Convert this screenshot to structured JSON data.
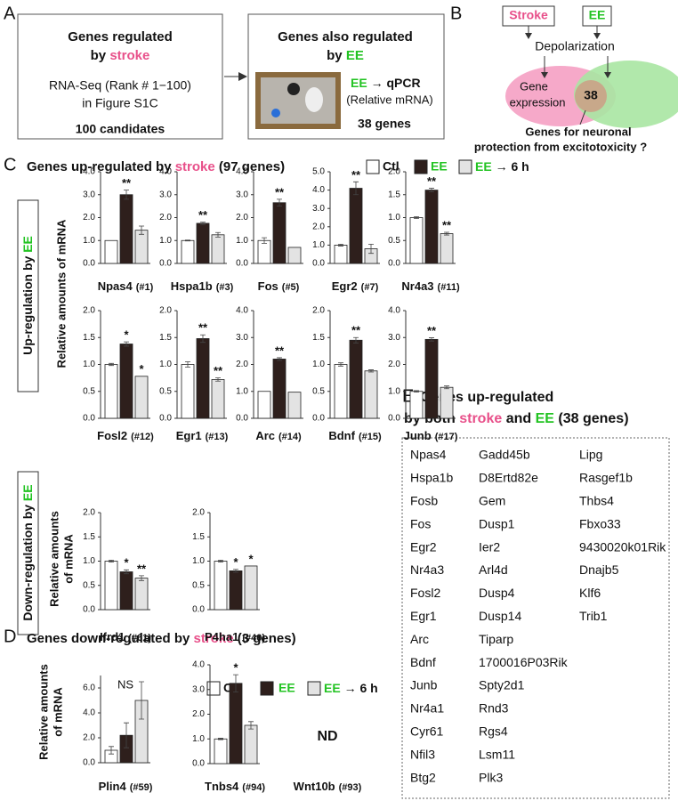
{
  "panel_a": {
    "label": "A",
    "box_1": {
      "title": [
        "Genes regulated",
        "by ",
        "stroke"
      ],
      "method": [
        "RNA-Seq (Rank # 1−100)",
        "in Figure S1C"
      ],
      "result": "100 candidates"
    },
    "box_2": {
      "title": [
        "Genes also regulated",
        "by ",
        "EE"
      ],
      "method": [
        "EE",
        " → qPCR",
        "(Relative mRNA)"
      ],
      "result": "38 genes"
    }
  },
  "panel_b": {
    "label": "B",
    "stroke": "Stroke",
    "ee": "EE",
    "depolarization": "Depolarization",
    "gene_expression": [
      "Gene",
      "expression"
    ],
    "overlap": "38",
    "caption": [
      "Genes for neuronal",
      "protection from excitotoxicity ?"
    ]
  },
  "panel_c": {
    "label": "C",
    "title": [
      "Genes up-regulated by ",
      "stroke",
      " (97 genes)"
    ],
    "legend": [
      [
        "Ctl"
      ],
      [
        "EE"
      ],
      [
        "EE",
        " → 6 h"
      ]
    ],
    "y_label": "Relative amounts of mRNA",
    "up_label": [
      "Up-regulation by ",
      "EE"
    ],
    "down_label": [
      "Down-regulation by ",
      "EE"
    ],
    "down_y_label": [
      "Relative amounts",
      "of mRNA"
    ]
  },
  "panel_d": {
    "label": "D",
    "title": [
      "Genes down-regulated by ",
      "stroke",
      " (3 genes)"
    ],
    "legend": [
      [
        "Ctl"
      ],
      [
        "EE"
      ],
      [
        "EE",
        " → 6 h"
      ]
    ],
    "y_label": [
      "Relative amounts",
      "of mRNA"
    ],
    "nd_gene": {
      "title": "Wnt10b",
      "subtitle": "(#93)",
      "note": "ND"
    }
  },
  "panel_e": {
    "label": "E",
    "title": [
      "Genes up-regulated",
      "by both ",
      "stroke",
      " and ",
      "EE",
      " (38 genes)"
    ],
    "genes": [
      [
        "Npas4",
        "Hspa1b",
        "Fosb",
        "Fos",
        "Egr2",
        "Nr4a3",
        "Fosl2",
        "Egr1",
        "Arc",
        "Bdnf",
        "Junb",
        "Nr4a1",
        "Cyr61",
        "Nfil3",
        "Btg2"
      ],
      [
        "Gadd45b",
        "D8Ertd82e",
        "Gem",
        "Dusp1",
        "Ier2",
        "Arl4d",
        "Dusp4",
        "Dusp14",
        "Tiparp",
        "1700016P03Rik",
        "Spty2d1",
        "Rnd3",
        "Rgs4",
        "Lsm11",
        "Plk3"
      ],
      [
        "Lipg",
        "Rasgef1b",
        "Thbs4",
        "Fbxo33",
        "9430020k01Rik",
        "Dnajb5",
        "Klf6",
        "Trib1"
      ]
    ]
  },
  "chart_data": [
    {
      "type": "bar",
      "title": "Npas4",
      "subtitle": "(#1)",
      "values": [
        1.0,
        3.0,
        1.45
      ],
      "errors": [
        0,
        0.2,
        0.18
      ],
      "significance": [
        null,
        "**",
        null
      ],
      "colors": [
        "#ffffff",
        "#2e1f1c",
        "#e3e3e3"
      ],
      "ylim": [
        0,
        4
      ],
      "yticks": [
        {
          "value": 0,
          "label": "0.0"
        },
        {
          "value": 1,
          "label": "1.0"
        },
        {
          "value": 2,
          "label": "2.0"
        },
        {
          "value": 3,
          "label": "3.0"
        },
        {
          "value": 4,
          "label": "4.0"
        }
      ]
    },
    {
      "type": "bar",
      "title": "Hspa1b",
      "subtitle": "(#3)",
      "values": [
        1.0,
        1.75,
        1.25
      ],
      "errors": [
        0.02,
        0.05,
        0.1
      ],
      "significance": [
        null,
        "**",
        null
      ],
      "colors": [
        "#ffffff",
        "#2e1f1c",
        "#e3e3e3"
      ],
      "ylim": [
        0,
        4
      ],
      "yticks": [
        {
          "value": 0,
          "label": "0.0"
        },
        {
          "value": 1,
          "label": "1.0"
        },
        {
          "value": 2,
          "label": "2.0"
        },
        {
          "value": 3,
          "label": "3.0"
        },
        {
          "value": 4,
          "label": "4.0"
        }
      ]
    },
    {
      "type": "bar",
      "title": "Fos",
      "subtitle": "(#5)",
      "values": [
        1.0,
        2.65,
        0.7
      ],
      "errors": [
        0.12,
        0.15,
        0
      ],
      "significance": [
        null,
        "**",
        null
      ],
      "colors": [
        "#ffffff",
        "#2e1f1c",
        "#e3e3e3"
      ],
      "ylim": [
        0,
        4
      ],
      "yticks": [
        {
          "value": 0,
          "label": "0.0"
        },
        {
          "value": 1,
          "label": "1.0"
        },
        {
          "value": 2,
          "label": "2.0"
        },
        {
          "value": 3,
          "label": "3.0"
        },
        {
          "value": 4,
          "label": "4.0"
        }
      ]
    },
    {
      "type": "bar",
      "title": "Egr2",
      "subtitle": "(#7)",
      "values": [
        1.0,
        4.1,
        0.8
      ],
      "errors": [
        0.05,
        0.35,
        0.25
      ],
      "significance": [
        null,
        "**",
        null
      ],
      "colors": [
        "#ffffff",
        "#2e1f1c",
        "#e3e3e3"
      ],
      "ylim": [
        0,
        5
      ],
      "yticks": [
        {
          "value": 0,
          "label": "0.0"
        },
        {
          "value": 1,
          "label": "1.0"
        },
        {
          "value": 2,
          "label": "2.0"
        },
        {
          "value": 3,
          "label": "3.0"
        },
        {
          "value": 4,
          "label": "4.0"
        },
        {
          "value": 5,
          "label": "5.0"
        }
      ]
    },
    {
      "type": "bar",
      "title": "Nr4a3",
      "subtitle": "(#11)",
      "values": [
        1.0,
        1.6,
        0.65
      ],
      "errors": [
        0.02,
        0.04,
        0.03
      ],
      "significance": [
        null,
        "**",
        "**"
      ],
      "colors": [
        "#ffffff",
        "#2e1f1c",
        "#e3e3e3"
      ],
      "ylim": [
        0,
        2
      ],
      "yticks": [
        {
          "value": 0,
          "label": "0.0"
        },
        0.5,
        {
          "value": 1,
          "label": "1.0"
        },
        1.5,
        {
          "value": 2,
          "label": "2.0"
        }
      ]
    },
    {
      "type": "bar",
      "title": "Fosl2",
      "subtitle": "(#12)",
      "values": [
        1.0,
        1.38,
        0.78
      ],
      "errors": [
        0.02,
        0.04,
        0
      ],
      "significance": [
        null,
        "*",
        "*"
      ],
      "colors": [
        "#ffffff",
        "#2e1f1c",
        "#e3e3e3"
      ],
      "ylim": [
        0,
        2
      ],
      "yticks": [
        {
          "value": 0,
          "label": "0.0"
        },
        0.5,
        {
          "value": 1,
          "label": "1.0"
        },
        1.5,
        {
          "value": 2,
          "label": "2.0"
        }
      ]
    },
    {
      "type": "bar",
      "title": "Egr1",
      "subtitle": "(#13)",
      "values": [
        1.0,
        1.48,
        0.72
      ],
      "errors": [
        0.05,
        0.07,
        0.03
      ],
      "significance": [
        null,
        "**",
        "**"
      ],
      "colors": [
        "#ffffff",
        "#2e1f1c",
        "#e3e3e3"
      ],
      "ylim": [
        0,
        2
      ],
      "yticks": [
        {
          "value": 0,
          "label": "0.0"
        },
        0.5,
        {
          "value": 1,
          "label": "1.0"
        },
        1.5,
        {
          "value": 2,
          "label": "2.0"
        }
      ]
    },
    {
      "type": "bar",
      "title": "Arc",
      "subtitle": "(#14)",
      "values": [
        1.0,
        2.2,
        0.97
      ],
      "errors": [
        0,
        0.05,
        0
      ],
      "significance": [
        null,
        "**",
        null
      ],
      "colors": [
        "#ffffff",
        "#2e1f1c",
        "#e3e3e3"
      ],
      "ylim": [
        0,
        4
      ],
      "yticks": [
        {
          "value": 0,
          "label": "0.0"
        },
        {
          "value": 1,
          "label": "1.0"
        },
        {
          "value": 2,
          "label": "2.0"
        },
        {
          "value": 3,
          "label": "3.0"
        },
        {
          "value": 4,
          "label": "4.0"
        }
      ]
    },
    {
      "type": "bar",
      "title": "Bdnf",
      "subtitle": "(#15)",
      "values": [
        1.0,
        1.45,
        0.88
      ],
      "errors": [
        0.03,
        0.05,
        0.02
      ],
      "significance": [
        null,
        "**",
        null
      ],
      "colors": [
        "#ffffff",
        "#2e1f1c",
        "#e3e3e3"
      ],
      "ylim": [
        0,
        2
      ],
      "yticks": [
        {
          "value": 0,
          "label": "0.0"
        },
        0.5,
        {
          "value": 1,
          "label": "1.0"
        },
        1.5,
        {
          "value": 2,
          "label": "2.0"
        }
      ]
    },
    {
      "type": "bar",
      "title": "Junb",
      "subtitle": "(#17)",
      "values": [
        1.0,
        2.93,
        1.15
      ],
      "errors": [
        0.03,
        0.06,
        0.05
      ],
      "significance": [
        null,
        "**",
        null
      ],
      "colors": [
        "#ffffff",
        "#2e1f1c",
        "#e3e3e3"
      ],
      "ylim": [
        0,
        4
      ],
      "yticks": [
        {
          "value": 0,
          "label": "0.0"
        },
        {
          "value": 1,
          "label": "1.0"
        },
        {
          "value": 2,
          "label": "2.0"
        },
        {
          "value": 3,
          "label": "3.0"
        },
        {
          "value": 4,
          "label": "4.0"
        }
      ]
    },
    {
      "type": "bar",
      "title": "Ifrd1",
      "subtitle": "(#61)",
      "values": [
        1.0,
        0.78,
        0.65
      ],
      "errors": [
        0.02,
        0.04,
        0.05
      ],
      "significance": [
        null,
        "*",
        "**"
      ],
      "colors": [
        "#ffffff",
        "#2e1f1c",
        "#e3e3e3"
      ],
      "ylim": [
        0,
        2
      ],
      "yticks": [
        {
          "value": 0,
          "label": "0.0"
        },
        0.5,
        {
          "value": 1,
          "label": "1.0"
        },
        1.5,
        {
          "value": 2,
          "label": "2.0"
        }
      ]
    },
    {
      "type": "bar",
      "title": "P4ha1",
      "subtitle": "(#40)",
      "values": [
        1.0,
        0.8,
        0.9
      ],
      "errors": [
        0.02,
        0.03,
        0
      ],
      "significance": [
        null,
        "*",
        "*"
      ],
      "colors": [
        "#ffffff",
        "#2e1f1c",
        "#e3e3e3"
      ],
      "ylim": [
        0,
        2
      ],
      "yticks": [
        {
          "value": 0,
          "label": "0.0"
        },
        0.5,
        {
          "value": 1,
          "label": "1.0"
        },
        1.5,
        {
          "value": 2,
          "label": "2.0"
        }
      ]
    },
    {
      "type": "bar",
      "title": "Plin4",
      "subtitle": "(#59)",
      "annotation": "NS",
      "values": [
        1.0,
        2.2,
        5.0
      ],
      "errors": [
        0.3,
        1.0,
        1.5
      ],
      "colors": [
        "#ffffff",
        "#2e1f1c",
        "#e3e3e3"
      ],
      "ylim": [
        0,
        7
      ],
      "yticks": [
        {
          "value": 0,
          "label": "0.0"
        },
        {
          "value": 2,
          "label": "2.0"
        },
        {
          "value": 4,
          "label": "4.0"
        },
        {
          "value": 6,
          "label": "6.0"
        }
      ]
    },
    {
      "type": "bar",
      "title": "Tnbs4",
      "subtitle": "(#94)",
      "values": [
        1.0,
        3.25,
        1.55
      ],
      "errors": [
        0.03,
        0.35,
        0.15
      ],
      "significance": [
        null,
        "*",
        null
      ],
      "colors": [
        "#ffffff",
        "#2e1f1c",
        "#e3e3e3"
      ],
      "ylim": [
        0,
        4
      ],
      "yticks": [
        {
          "value": 0,
          "label": "0.0"
        },
        {
          "value": 1,
          "label": "1.0"
        },
        {
          "value": 2,
          "label": "2.0"
        },
        {
          "value": 3,
          "label": "3.0"
        },
        {
          "value": 4,
          "label": "4.0"
        }
      ]
    }
  ]
}
